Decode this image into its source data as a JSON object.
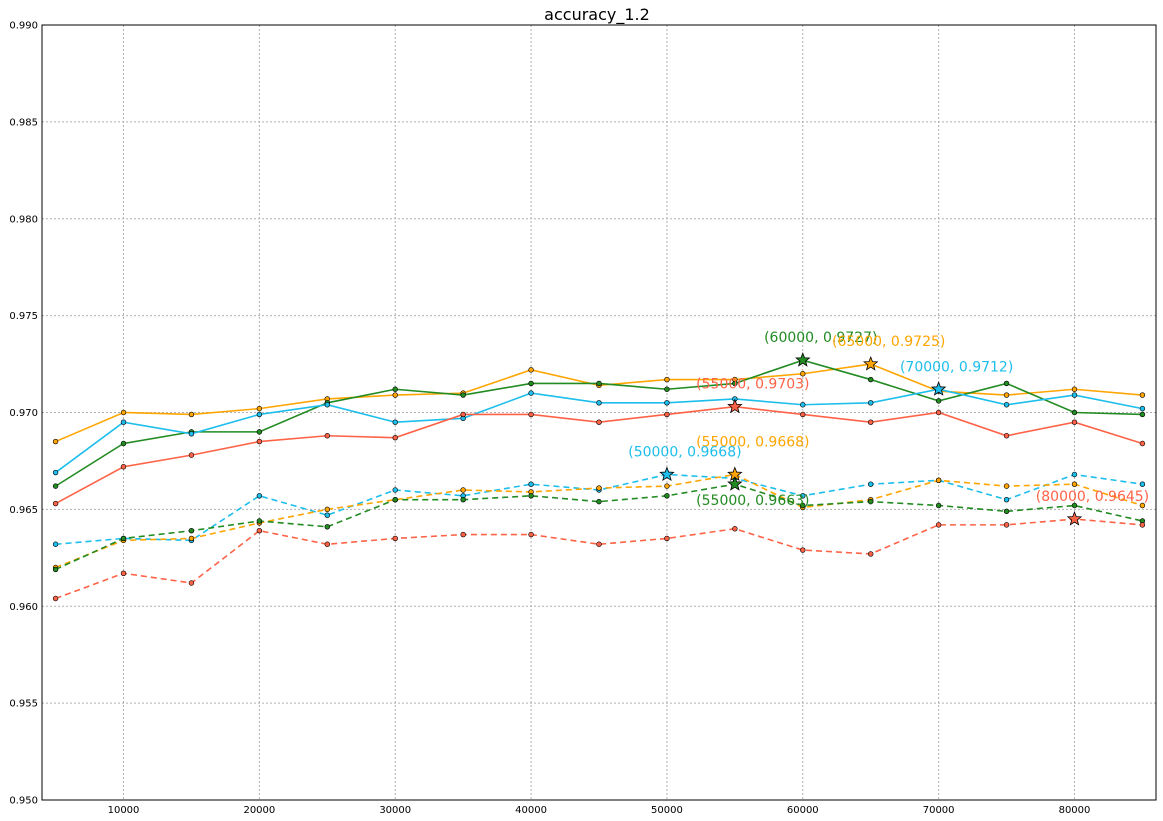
{
  "chart_data": {
    "type": "line",
    "title": "accuracy_1.2",
    "xlabel": "",
    "ylabel": "",
    "xlim": [
      4000,
      86000
    ],
    "ylim": [
      0.95,
      0.99
    ],
    "grid": true,
    "x_ticks": [
      10000,
      20000,
      30000,
      40000,
      50000,
      60000,
      70000,
      80000
    ],
    "y_ticks": [
      "0.950",
      "0.955",
      "0.960",
      "0.965",
      "0.970",
      "0.975",
      "0.980",
      "0.985",
      "0.990"
    ],
    "x": [
      5000,
      10000,
      15000,
      20000,
      25000,
      30000,
      35000,
      40000,
      45000,
      50000,
      55000,
      60000,
      65000,
      70000,
      75000,
      80000,
      85000
    ],
    "series": [
      {
        "color": "#ffa500",
        "style": "solid",
        "values": [
          0.9685,
          0.97,
          0.9699,
          0.9702,
          0.9707,
          0.9709,
          0.971,
          0.9722,
          0.9714,
          0.9717,
          0.9717,
          0.972,
          0.9725,
          0.9711,
          0.9709,
          0.9712,
          0.9709
        ]
      },
      {
        "color": "#228b22",
        "style": "solid",
        "values": [
          0.9662,
          0.9684,
          0.969,
          0.969,
          0.9705,
          0.9712,
          0.9709,
          0.9715,
          0.9715,
          0.9712,
          0.9715,
          0.9727,
          0.9717,
          0.9706,
          0.9715,
          0.97,
          0.9699
        ]
      },
      {
        "color": "#1ebeec",
        "style": "solid",
        "values": [
          0.9669,
          0.9695,
          0.9689,
          0.9699,
          0.9704,
          0.9695,
          0.9697,
          0.971,
          0.9705,
          0.9705,
          0.9707,
          0.9704,
          0.9705,
          0.9712,
          0.9704,
          0.9709,
          0.9702
        ]
      },
      {
        "color": "#ff6347",
        "style": "solid",
        "values": [
          0.9653,
          0.9672,
          0.9678,
          0.9685,
          0.9688,
          0.9687,
          0.9699,
          0.9699,
          0.9695,
          0.9699,
          0.9703,
          0.9699,
          0.9695,
          0.97,
          0.9688,
          0.9695,
          0.9684
        ]
      },
      {
        "color": "#1ebeec",
        "style": "dashed",
        "values": [
          0.9632,
          0.9635,
          0.9634,
          0.9657,
          0.9647,
          0.966,
          0.9657,
          0.9663,
          0.966,
          0.9668,
          0.9666,
          0.9657,
          0.9663,
          0.9665,
          0.9655,
          0.9668,
          0.9663
        ]
      },
      {
        "color": "#ffa500",
        "style": "dashed",
        "values": [
          0.962,
          0.9634,
          0.9635,
          0.9643,
          0.965,
          0.9655,
          0.966,
          0.9659,
          0.9661,
          0.9662,
          0.9668,
          0.9651,
          0.9655,
          0.9665,
          0.9662,
          0.9663,
          0.9652
        ]
      },
      {
        "color": "#228b22",
        "style": "dashed",
        "values": [
          0.9619,
          0.9635,
          0.9639,
          0.9644,
          0.9641,
          0.9655,
          0.9655,
          0.9657,
          0.9654,
          0.9657,
          0.9663,
          0.9652,
          0.9654,
          0.9652,
          0.9649,
          0.9652,
          0.9644
        ]
      },
      {
        "color": "#ff6347",
        "style": "dashed",
        "values": [
          0.9604,
          0.9617,
          0.9612,
          0.9639,
          0.9632,
          0.9635,
          0.9637,
          0.9637,
          0.9632,
          0.9635,
          0.964,
          0.9629,
          0.9627,
          0.9642,
          0.9642,
          0.9645,
          0.9642
        ]
      }
    ],
    "annotations": [
      {
        "text": "(60000, 0.9727)",
        "x": 60000,
        "y": 0.9727,
        "color": "#228b22",
        "anchor": "above"
      },
      {
        "text": "(65000, 0.9725)",
        "x": 65000,
        "y": 0.9725,
        "color": "#ffa500",
        "anchor": "above"
      },
      {
        "text": "(70000, 0.9712)",
        "x": 70000,
        "y": 0.9712,
        "color": "#1ebeec",
        "anchor": "above"
      },
      {
        "text": "(55000, 0.9703)",
        "x": 55000,
        "y": 0.9703,
        "color": "#ff6347",
        "anchor": "above"
      },
      {
        "text": "(55000, 0.9668)",
        "x": 55000,
        "y": 0.9668,
        "color": "#ffa500",
        "anchor": "far-above"
      },
      {
        "text": "(50000, 0.9668)",
        "x": 50000,
        "y": 0.9668,
        "color": "#1ebeec",
        "anchor": "above"
      },
      {
        "text": "(55000, 0.9663)",
        "x": 55000,
        "y": 0.9663,
        "color": "#228b22",
        "anchor": "below"
      },
      {
        "text": "(80000, 0.9645)",
        "x": 80000,
        "y": 0.9645,
        "color": "#ff6347",
        "anchor": "above"
      }
    ]
  }
}
